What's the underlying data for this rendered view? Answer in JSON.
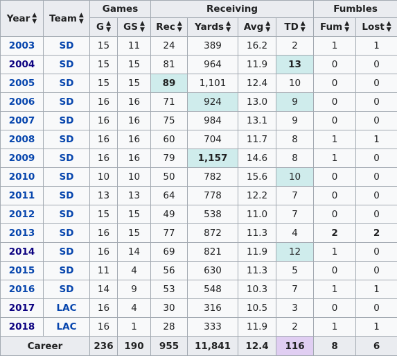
{
  "headers": {
    "year": "Year",
    "team": "Team",
    "groups": {
      "games": "Games",
      "receiving": "Receiving",
      "fumbles": "Fumbles"
    },
    "cols": [
      "G",
      "GS",
      "Rec",
      "Yards",
      "Avg",
      "TD",
      "Fum",
      "Lost"
    ],
    "sort_icon": "sort-icon"
  },
  "rows": [
    {
      "year": "2003",
      "team": "SD",
      "g": "15",
      "gs": "11",
      "rec": "24",
      "yds": "389",
      "avg": "16.2",
      "td": "2",
      "fum": "1",
      "lost": "1"
    },
    {
      "year": "2004",
      "team": "SD",
      "g": "15",
      "gs": "15",
      "rec": "81",
      "yds": "964",
      "avg": "11.9",
      "td": "13",
      "fum": "0",
      "lost": "0"
    },
    {
      "year": "2005",
      "team": "SD",
      "g": "15",
      "gs": "15",
      "rec": "89",
      "yds": "1,101",
      "avg": "12.4",
      "td": "10",
      "fum": "0",
      "lost": "0"
    },
    {
      "year": "2006",
      "team": "SD",
      "g": "16",
      "gs": "16",
      "rec": "71",
      "yds": "924",
      "avg": "13.0",
      "td": "9",
      "fum": "0",
      "lost": "0"
    },
    {
      "year": "2007",
      "team": "SD",
      "g": "16",
      "gs": "16",
      "rec": "75",
      "yds": "984",
      "avg": "13.1",
      "td": "9",
      "fum": "0",
      "lost": "0"
    },
    {
      "year": "2008",
      "team": "SD",
      "g": "16",
      "gs": "16",
      "rec": "60",
      "yds": "704",
      "avg": "11.7",
      "td": "8",
      "fum": "1",
      "lost": "1"
    },
    {
      "year": "2009",
      "team": "SD",
      "g": "16",
      "gs": "16",
      "rec": "79",
      "yds": "1,157",
      "avg": "14.6",
      "td": "8",
      "fum": "1",
      "lost": "0"
    },
    {
      "year": "2010",
      "team": "SD",
      "g": "10",
      "gs": "10",
      "rec": "50",
      "yds": "782",
      "avg": "15.6",
      "td": "10",
      "fum": "0",
      "lost": "0"
    },
    {
      "year": "2011",
      "team": "SD",
      "g": "13",
      "gs": "13",
      "rec": "64",
      "yds": "778",
      "avg": "12.2",
      "td": "7",
      "fum": "0",
      "lost": "0"
    },
    {
      "year": "2012",
      "team": "SD",
      "g": "15",
      "gs": "15",
      "rec": "49",
      "yds": "538",
      "avg": "11.0",
      "td": "7",
      "fum": "0",
      "lost": "0"
    },
    {
      "year": "2013",
      "team": "SD",
      "g": "16",
      "gs": "15",
      "rec": "77",
      "yds": "872",
      "avg": "11.3",
      "td": "4",
      "fum": "2",
      "lost": "2"
    },
    {
      "year": "2014",
      "team": "SD",
      "g": "16",
      "gs": "14",
      "rec": "69",
      "yds": "821",
      "avg": "11.9",
      "td": "12",
      "fum": "1",
      "lost": "0"
    },
    {
      "year": "2015",
      "team": "SD",
      "g": "11",
      "gs": "4",
      "rec": "56",
      "yds": "630",
      "avg": "11.3",
      "td": "5",
      "fum": "0",
      "lost": "0"
    },
    {
      "year": "2016",
      "team": "SD",
      "g": "14",
      "gs": "9",
      "rec": "53",
      "yds": "548",
      "avg": "10.3",
      "td": "7",
      "fum": "1",
      "lost": "1"
    },
    {
      "year": "2017",
      "team": "LAC",
      "g": "16",
      "gs": "4",
      "rec": "30",
      "yds": "316",
      "avg": "10.5",
      "td": "3",
      "fum": "0",
      "lost": "0"
    },
    {
      "year": "2018",
      "team": "LAC",
      "g": "16",
      "gs": "1",
      "rec": "28",
      "yds": "333",
      "avg": "11.9",
      "td": "2",
      "fum": "1",
      "lost": "1"
    }
  ],
  "career": {
    "label": "Career",
    "g": "236",
    "gs": "190",
    "rec": "955",
    "yds": "11,841",
    "avg": "12.4",
    "td": "116",
    "fum": "8",
    "lost": "6"
  },
  "highlights": {
    "lead": {
      "1": [
        "td"
      ],
      "2": [
        "rec"
      ],
      "3": [
        "yds",
        "td"
      ],
      "6": [
        "yds"
      ],
      "7": [
        "td"
      ],
      "11": [
        "td"
      ]
    },
    "bold": {
      "2": [
        "rec"
      ],
      "6": [
        "yds"
      ],
      "1": [
        "td"
      ],
      "10": [
        "fum",
        "lost"
      ]
    },
    "visited_years": [
      "2004",
      "2014",
      "2017",
      "2018"
    ],
    "career_record": [
      "td"
    ]
  },
  "colors": {
    "header_bg": "#eaecf0",
    "cell_bg": "#f8f9fa",
    "league_lead": "#cfecec",
    "record": "#e0cef2",
    "link": "#0645ad",
    "link_visited": "#0b0080",
    "border": "#a2a9b1"
  }
}
